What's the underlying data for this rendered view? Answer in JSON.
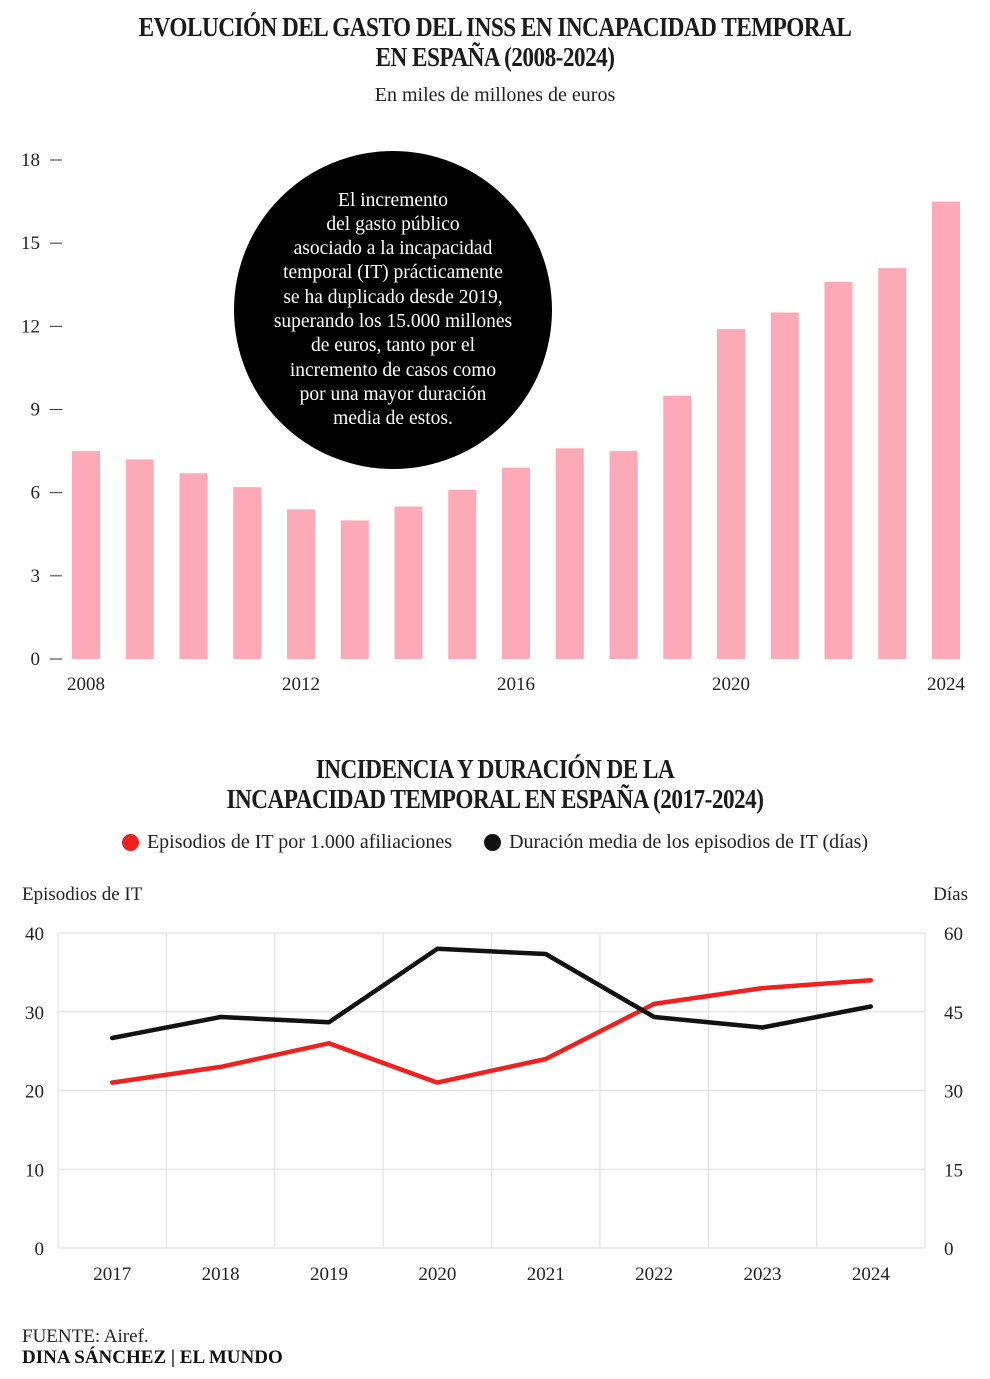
{
  "chart_data": [
    {
      "type": "bar",
      "title": "EVOLUCIÓN DEL GASTO DEL INSS EN INCAPACIDAD TEMPORAL EN ESPAÑA (2008-2024)",
      "title_lines": [
        "EVOLUCIÓN DEL GASTO DEL INSS EN INCAPACIDAD TEMPORAL",
        "EN ESPAÑA (2008-2024)"
      ],
      "subtitle": "En miles de millones de euros",
      "xlabel": "",
      "ylabel": "",
      "categories": [
        "2008",
        "2009",
        "2010",
        "2011",
        "2012",
        "2013",
        "2014",
        "2015",
        "2016",
        "2017",
        "2018",
        "2019",
        "2020",
        "2021",
        "2022",
        "2023",
        "2024"
      ],
      "values": [
        7.5,
        7.2,
        6.7,
        6.2,
        5.4,
        5.0,
        5.5,
        6.1,
        6.9,
        7.6,
        7.5,
        9.5,
        11.9,
        12.5,
        13.6,
        14.1,
        16.5
      ],
      "x_tick_labels": [
        "2008",
        "2012",
        "2016",
        "2020",
        "2024"
      ],
      "y_ticks": [
        0,
        3,
        6,
        9,
        12,
        15,
        18
      ],
      "ylim": [
        0,
        18
      ],
      "grid": false,
      "bar_color": "#fcaab8",
      "annotation": {
        "lines": [
          "El incremento",
          "del gasto público",
          "asociado a la incapacidad",
          "temporal (IT) prácticamente",
          "se ha duplicado desde 2019,",
          "superando los 15.000 millones",
          "de euros, tanto por el",
          "incremento de casos como",
          "por una mayor duración",
          "media de estos."
        ],
        "background": "#000000",
        "text_color": "#ffffff"
      }
    },
    {
      "type": "line",
      "title": "INCIDENCIA Y DURACIÓN DE LA INCAPACIDAD TEMPORAL EN ESPAÑA (2017-2024)",
      "title_lines": [
        "INCIDENCIA Y DURACIÓN DE LA",
        "INCAPACIDAD TEMPORAL EN ESPAÑA (2017-2024)"
      ],
      "categories": [
        "2017",
        "2018",
        "2019",
        "2020",
        "2021",
        "2022",
        "2023",
        "2024"
      ],
      "series": [
        {
          "name": "Episodios de IT por 1.000 afiliaciones",
          "axis": "left",
          "color": "#f0201f",
          "values": [
            21,
            23,
            26,
            21,
            24,
            31,
            33,
            34
          ]
        },
        {
          "name": "Duración media de los episodios de IT (días)",
          "axis": "right",
          "color": "#111111",
          "values": [
            40,
            44,
            43,
            57,
            56,
            44,
            42,
            46
          ]
        }
      ],
      "y_left": {
        "label": "Episodios de IT",
        "ticks": [
          0,
          10,
          20,
          30,
          40
        ],
        "range": [
          0,
          40
        ]
      },
      "y_right": {
        "label": "Días",
        "ticks": [
          0,
          15,
          30,
          45,
          60
        ],
        "range": [
          0,
          60
        ]
      },
      "grid": true,
      "legend_position": "top-center"
    }
  ],
  "footer": {
    "source": "FUENTE: Airef.",
    "credit": "DINA SÁNCHEZ | EL MUNDO"
  }
}
